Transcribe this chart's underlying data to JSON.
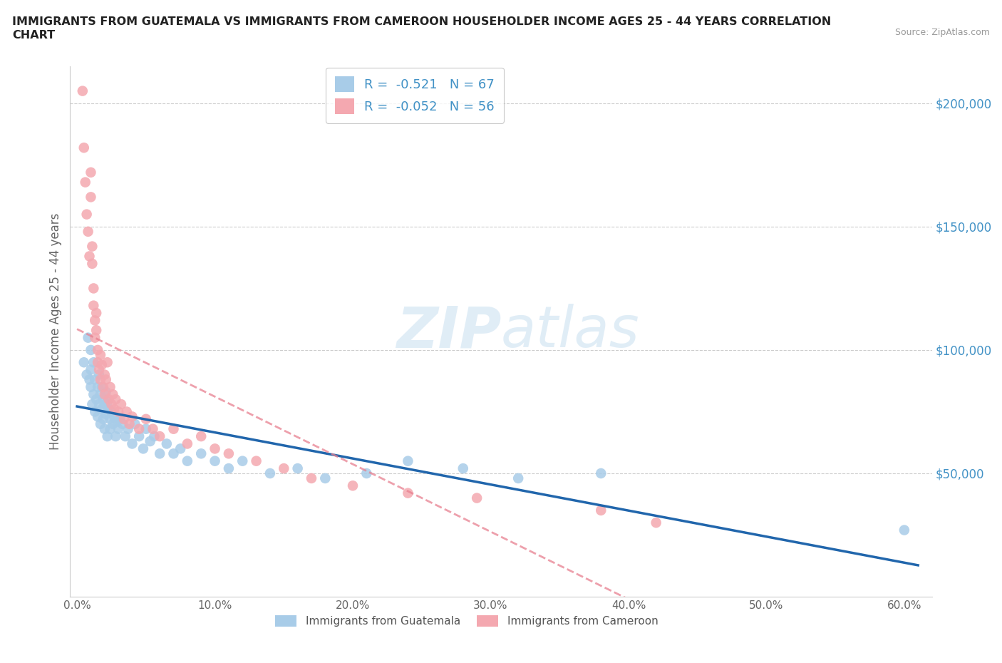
{
  "title_line1": "IMMIGRANTS FROM GUATEMALA VS IMMIGRANTS FROM CAMEROON HOUSEHOLDER INCOME AGES 25 - 44 YEARS CORRELATION",
  "title_line2": "CHART",
  "source": "Source: ZipAtlas.com",
  "ylabel": "Householder Income Ages 25 - 44 years",
  "xlim": [
    -0.005,
    0.62
  ],
  "ylim": [
    0,
    215000
  ],
  "yticks": [
    50000,
    100000,
    150000,
    200000
  ],
  "ytick_labels": [
    "$50,000",
    "$100,000",
    "$150,000",
    "$200,000"
  ],
  "xticks": [
    0.0,
    0.1,
    0.2,
    0.3,
    0.4,
    0.5,
    0.6
  ],
  "xtick_labels": [
    "0.0%",
    "10.0%",
    "20.0%",
    "30.0%",
    "40.0%",
    "50.0%",
    "60.0%"
  ],
  "guatemala_color": "#a8cce8",
  "cameroon_color": "#f4a8b0",
  "guatemala_R": -0.521,
  "guatemala_N": 67,
  "cameroon_R": -0.052,
  "cameroon_N": 56,
  "guatemala_line_color": "#2166ac",
  "cameroon_line_color": "#e88090",
  "guatemala_x": [
    0.005,
    0.007,
    0.008,
    0.009,
    0.01,
    0.01,
    0.01,
    0.011,
    0.012,
    0.012,
    0.013,
    0.013,
    0.014,
    0.015,
    0.015,
    0.016,
    0.016,
    0.017,
    0.017,
    0.018,
    0.018,
    0.019,
    0.019,
    0.02,
    0.02,
    0.021,
    0.021,
    0.022,
    0.022,
    0.023,
    0.024,
    0.024,
    0.025,
    0.026,
    0.027,
    0.028,
    0.029,
    0.03,
    0.031,
    0.033,
    0.035,
    0.037,
    0.04,
    0.042,
    0.045,
    0.048,
    0.05,
    0.053,
    0.056,
    0.06,
    0.065,
    0.07,
    0.075,
    0.08,
    0.09,
    0.1,
    0.11,
    0.12,
    0.14,
    0.16,
    0.18,
    0.21,
    0.24,
    0.28,
    0.32,
    0.38,
    0.6
  ],
  "guatemala_y": [
    95000,
    90000,
    105000,
    88000,
    92000,
    85000,
    100000,
    78000,
    95000,
    82000,
    88000,
    75000,
    80000,
    85000,
    73000,
    90000,
    78000,
    82000,
    70000,
    85000,
    76000,
    80000,
    72000,
    78000,
    68000,
    83000,
    74000,
    79000,
    65000,
    76000,
    72000,
    68000,
    75000,
    70000,
    73000,
    65000,
    71000,
    68000,
    72000,
    70000,
    65000,
    68000,
    62000,
    70000,
    65000,
    60000,
    68000,
    63000,
    65000,
    58000,
    62000,
    58000,
    60000,
    55000,
    58000,
    55000,
    52000,
    55000,
    50000,
    52000,
    48000,
    50000,
    55000,
    52000,
    48000,
    50000,
    27000
  ],
  "cameroon_x": [
    0.004,
    0.005,
    0.006,
    0.007,
    0.008,
    0.009,
    0.01,
    0.01,
    0.011,
    0.011,
    0.012,
    0.012,
    0.013,
    0.013,
    0.014,
    0.014,
    0.015,
    0.015,
    0.016,
    0.017,
    0.017,
    0.018,
    0.019,
    0.02,
    0.02,
    0.021,
    0.022,
    0.023,
    0.024,
    0.025,
    0.026,
    0.027,
    0.028,
    0.03,
    0.032,
    0.034,
    0.036,
    0.038,
    0.04,
    0.045,
    0.05,
    0.055,
    0.06,
    0.07,
    0.08,
    0.09,
    0.1,
    0.11,
    0.13,
    0.15,
    0.17,
    0.2,
    0.24,
    0.29,
    0.38,
    0.42
  ],
  "cameroon_y": [
    205000,
    182000,
    168000,
    155000,
    148000,
    138000,
    172000,
    162000,
    142000,
    135000,
    125000,
    118000,
    112000,
    105000,
    108000,
    115000,
    100000,
    95000,
    92000,
    98000,
    88000,
    94000,
    85000,
    90000,
    82000,
    88000,
    95000,
    80000,
    85000,
    78000,
    82000,
    76000,
    80000,
    75000,
    78000,
    72000,
    75000,
    70000,
    73000,
    68000,
    72000,
    68000,
    65000,
    68000,
    62000,
    65000,
    60000,
    58000,
    55000,
    52000,
    48000,
    45000,
    42000,
    40000,
    35000,
    30000
  ]
}
